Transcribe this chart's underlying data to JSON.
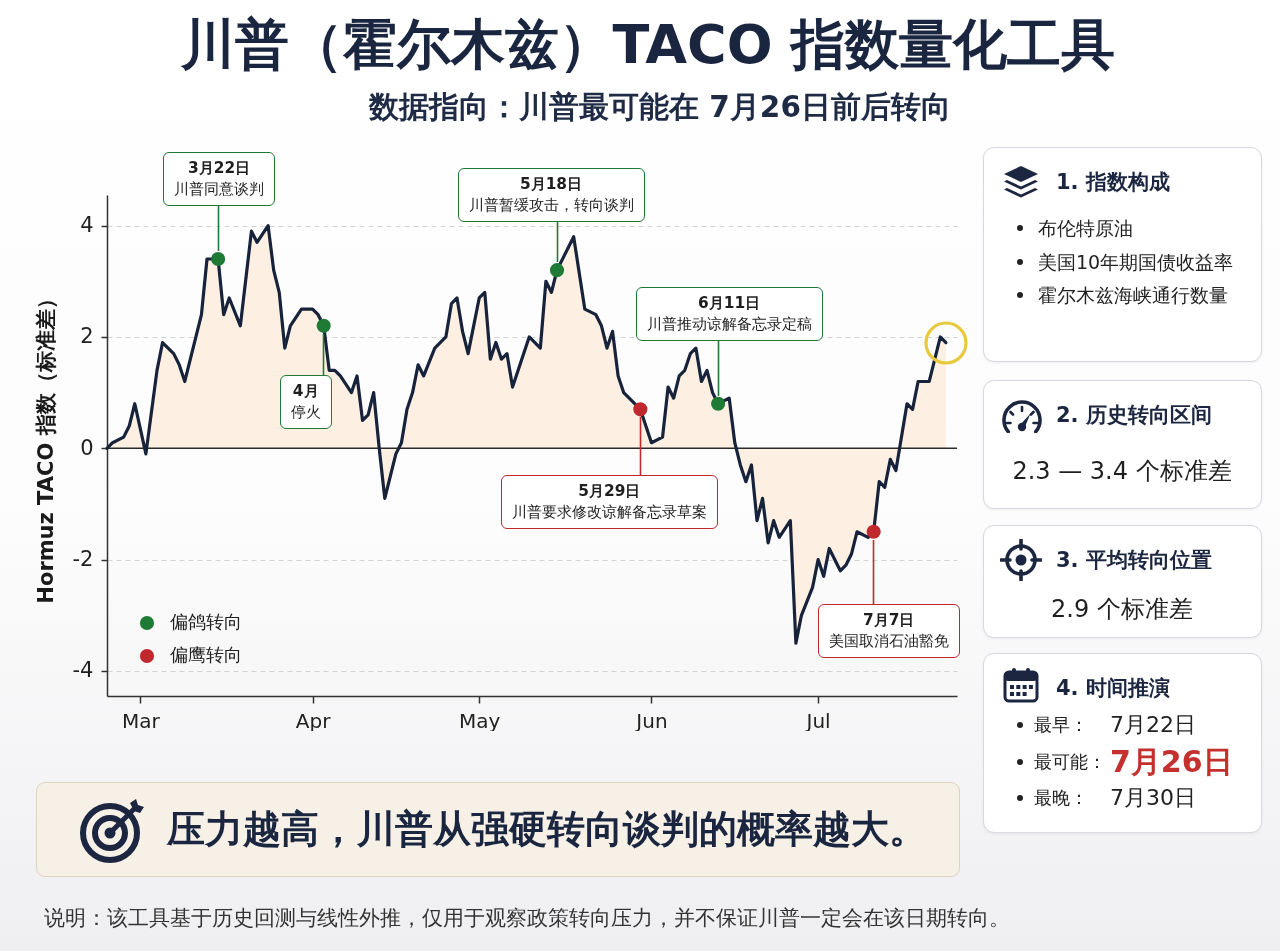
{
  "chart_data": [
    {
      "type": "area",
      "title": "川普（霍尔木兹）TACO 指数量化工具",
      "subtitle": "数据指向：川普最可能在 7月26日前后转向",
      "ylabel": "Hormuz TACO 指数（标准差）",
      "xlim": [
        "--02-23",
        "--07-26"
      ],
      "xticks": [
        {
          "value": "--03-01",
          "label": "Mar"
        },
        {
          "value": "--04-01",
          "label": "Apr"
        },
        {
          "value": "--05-01",
          "label": "May"
        },
        {
          "value": "--06-01",
          "label": "Jun"
        },
        {
          "value": "--07-01",
          "label": "Jul"
        }
      ],
      "ylim": [
        -4.45,
        4.55
      ],
      "yticks": [
        -4,
        -2,
        0,
        2,
        4
      ],
      "grid": "y",
      "legend": "bottom left",
      "ref_lines": [
        {
          "axis": "y",
          "value": 0,
          "color": "#2a2a2a"
        }
      ],
      "series": [
        {
          "color": "#17223b",
          "x": [
            "--02-23",
            "--02-24",
            "--02-26",
            "--02-27",
            "--02-28",
            "--03-02",
            "--03-04",
            "--03-05",
            "--03-06",
            "--03-07",
            "--03-08",
            "--03-09",
            "--03-12",
            "--03-13",
            "--03-15",
            "--03-16",
            "--03-17",
            "--03-19",
            "--03-21",
            "--03-22",
            "--03-24",
            "--03-25",
            "--03-26",
            "--03-27",
            "--03-28",
            "--03-30",
            "--03-31",
            "--04-01",
            "--04-02",
            "--04-03",
            "--04-04",
            "--04-05",
            "--04-06",
            "--04-08",
            "--04-09",
            "--04-10",
            "--04-11",
            "--04-12",
            "--04-13",
            "--04-14",
            "--04-16",
            "--04-17",
            "--04-18",
            "--04-19",
            "--04-20",
            "--04-21",
            "--04-23",
            "--04-25",
            "--04-26",
            "--04-27",
            "--04-28",
            "--04-29",
            "--05-01",
            "--05-02",
            "--05-03",
            "--05-04",
            "--05-05",
            "--05-06",
            "--05-07",
            "--05-10",
            "--05-12",
            "--05-13",
            "--05-14",
            "--05-15",
            "--05-18",
            "--05-20",
            "--05-22",
            "--05-23",
            "--05-24",
            "--05-25",
            "--05-26",
            "--05-27",
            "--05-28",
            "--05-30",
            "--05-31",
            "--06-01",
            "--06-03",
            "--06-04",
            "--06-05",
            "--06-06",
            "--06-07",
            "--06-08",
            "--06-09",
            "--06-10",
            "--06-11",
            "--06-12",
            "--06-13",
            "--06-15",
            "--06-16",
            "--06-17",
            "--06-18",
            "--06-19",
            "--06-20",
            "--06-21",
            "--06-22",
            "--06-23",
            "--06-24",
            "--06-26",
            "--06-27",
            "--06-28",
            "--06-30",
            "--07-01",
            "--07-02",
            "--07-03",
            "--07-05",
            "--07-06",
            "--07-07",
            "--07-08",
            "--07-10",
            "--07-11",
            "--07-12",
            "--07-13",
            "--07-14",
            "--07-15",
            "--07-17",
            "--07-18",
            "--07-19",
            "--07-21",
            "--07-23",
            "--07-24"
          ],
          "values": [
            0.0,
            0.1,
            0.2,
            0.4,
            0.8,
            -0.1,
            1.4,
            1.9,
            1.8,
            1.7,
            1.5,
            1.2,
            2.4,
            3.4,
            3.4,
            2.4,
            2.7,
            2.2,
            3.9,
            3.7,
            4.0,
            3.2,
            2.8,
            1.8,
            2.2,
            2.5,
            2.5,
            2.5,
            2.4,
            2.2,
            1.4,
            1.4,
            1.3,
            1.0,
            1.3,
            0.5,
            0.6,
            1.0,
            0.0,
            -0.9,
            -0.1,
            0.1,
            0.7,
            1.0,
            1.5,
            1.3,
            1.8,
            2.0,
            2.6,
            2.7,
            2.1,
            1.7,
            2.7,
            2.8,
            1.6,
            1.9,
            1.6,
            1.7,
            1.1,
            2.0,
            1.8,
            3.0,
            2.8,
            3.2,
            3.8,
            2.5,
            2.4,
            2.2,
            1.8,
            2.1,
            1.3,
            1.0,
            0.9,
            0.7,
            0.4,
            0.1,
            0.2,
            1.1,
            0.9,
            1.3,
            1.4,
            1.7,
            1.8,
            1.2,
            1.4,
            1.0,
            0.8,
            0.9,
            0.1,
            -0.3,
            -0.6,
            -0.3,
            -1.3,
            -0.9,
            -1.7,
            -1.3,
            -1.6,
            -1.3,
            -3.5,
            -3.0,
            -2.5,
            -2.0,
            -2.3,
            -1.8,
            -2.2,
            -2.1,
            -1.9,
            -1.5,
            -1.6,
            -1.5,
            -0.6,
            -0.7,
            -0.2,
            -0.4,
            0.8,
            0.7,
            1.2,
            1.2,
            2.0,
            1.9
          ]
        },
        {
          "name": "偏鸽转向",
          "type": "scatter",
          "color": "#1f7a35",
          "x": [
            "--03-15",
            "--04-03",
            "--05-15",
            "--06-13"
          ],
          "values": [
            3.4,
            2.2,
            3.2,
            0.8
          ]
        },
        {
          "name": "偏鹰转向",
          "type": "scatter",
          "color": "#c0282d",
          "x": [
            "--05-30",
            "--07-11"
          ],
          "values": [
            0.7,
            -1.5
          ]
        }
      ],
      "annotations": [
        "3月22日",
        {
          "text": "川普同意谈判",
          "x": "--03-15",
          "y": 3.4
        },
        {
          "text": "4月",
          "x": "--04-03",
          "y": 2.2
        },
        "停火",
        "5月18日",
        {
          "text": "川普暂缓攻击，转向谈判",
          "x": "--05-15",
          "y": 3.2
        },
        {
          "text": "5月29日",
          "x": "--05-30",
          "y": 0.7
        },
        "川普要求修改谅解备忘录草案",
        "6月11日",
        {
          "text": "川普推动谅解备忘录定稿",
          "x": "--06-13",
          "y": 0.8
        },
        {
          "text": "7月7日",
          "x": "--07-11",
          "y": -1.5
        },
        "美国取消石油豁免",
        "压力越高，川普从强硬转向谈判的概率越大。",
        "说明：该工具基于历史回测与线性外推，仅用于观察政策转向压力，并不保证川普一定会在该日期转向。"
      ]
    },
    {
      "type": "other",
      "title": "1. 指数构成",
      "annotations": [
        "布伦特原油",
        "美国10年期国债收益率",
        "霍尔木兹海峡通行数量"
      ]
    },
    {
      "type": "other",
      "title": "2. 历史转向区间",
      "annotations": [
        "2.3 — 3.4 个标准差"
      ]
    },
    {
      "type": "other",
      "title": "3. 平均转向位置",
      "annotations": [
        "2.9 个标准差"
      ]
    },
    {
      "type": "other",
      "title": "4. 时间推演",
      "annotations": [
        "最早：",
        "7月22日",
        "最可能：",
        "7月26日",
        "最晚：",
        "7月30日"
      ]
    }
  ]
}
